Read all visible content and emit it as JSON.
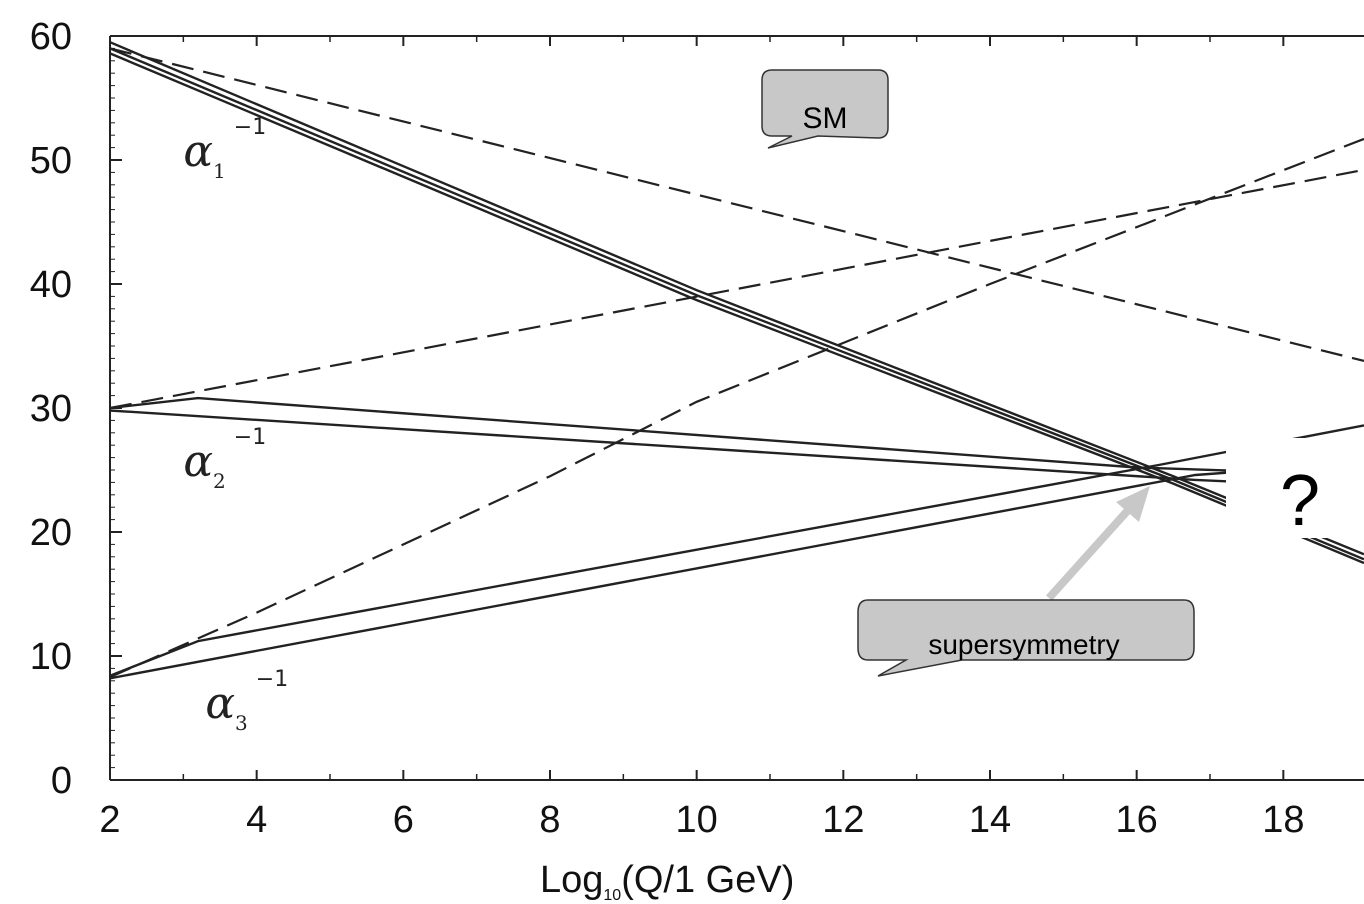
{
  "chart_data": {
    "type": "line",
    "xlabel_main": "Log",
    "xlabel_sub": "10",
    "xlabel_rest": "(Q/1 GeV)",
    "xlim": [
      2,
      19.1
    ],
    "ylim": [
      0,
      60
    ],
    "xticks": [
      2,
      4,
      6,
      8,
      10,
      12,
      14,
      16,
      18
    ],
    "yticks": [
      0,
      10,
      20,
      30,
      40,
      50,
      60
    ],
    "grid": false,
    "series": [
      {
        "group": "SM",
        "style": "dashed",
        "coupling": "alpha1",
        "x": [
          2,
          19.1
        ],
        "y": [
          59,
          33.8
        ]
      },
      {
        "group": "SM",
        "style": "dashed",
        "coupling": "alpha2",
        "x": [
          2,
          19.1
        ],
        "y": [
          30,
          49.2
        ]
      },
      {
        "group": "SM",
        "style": "dashed",
        "coupling": "alpha3",
        "x": [
          2,
          4,
          8,
          10,
          14,
          19.1
        ],
        "y": [
          8.3,
          13.5,
          24.5,
          30.5,
          40,
          51.7
        ]
      },
      {
        "group": "supersymmetry",
        "style": "solid",
        "coupling": "alpha1",
        "x": [
          2,
          10,
          16.5,
          19.1
        ],
        "y": [
          59.5,
          39.5,
          24.5,
          18.2
        ]
      },
      {
        "group": "supersymmetry",
        "style": "solid",
        "coupling": "alpha1",
        "x": [
          2,
          10,
          16.5,
          19.1
        ],
        "y": [
          59,
          39.1,
          24.2,
          17.8
        ]
      },
      {
        "group": "supersymmetry",
        "style": "solid",
        "coupling": "alpha1",
        "x": [
          2,
          10,
          16.5,
          19.1
        ],
        "y": [
          58.6,
          38.7,
          23.9,
          17.5
        ]
      },
      {
        "group": "supersymmetry",
        "style": "solid",
        "coupling": "alpha2",
        "x": [
          2,
          3.2,
          16,
          19.1
        ],
        "y": [
          30,
          30.8,
          25.2,
          24.6
        ]
      },
      {
        "group": "supersymmetry",
        "style": "solid",
        "coupling": "alpha2",
        "x": [
          2,
          16.8,
          19.1
        ],
        "y": [
          29.8,
          24.2,
          23.6
        ]
      },
      {
        "group": "supersymmetry",
        "style": "solid",
        "coupling": "alpha3",
        "x": [
          2,
          3.2,
          16.3,
          19.1
        ],
        "y": [
          8.4,
          11.2,
          25.4,
          28.6
        ]
      },
      {
        "group": "supersymmetry",
        "style": "solid",
        "coupling": "alpha3",
        "x": [
          2,
          16.8,
          19.1
        ],
        "y": [
          8.2,
          24.6,
          25.6
        ]
      }
    ],
    "series_labels": [
      {
        "base": "α",
        "sub": "1",
        "sup": "−1",
        "x": 3.0,
        "y": 49.5
      },
      {
        "base": "α",
        "sub": "2",
        "sup": "−1",
        "x": 3.0,
        "y": 24.5
      },
      {
        "base": "α",
        "sub": "3",
        "sup": "−1",
        "x": 3.3,
        "y": 5.0
      }
    ],
    "annotations": {
      "sm_callout": "SM",
      "susy_callout": "supersymmetry",
      "question": "?"
    }
  }
}
